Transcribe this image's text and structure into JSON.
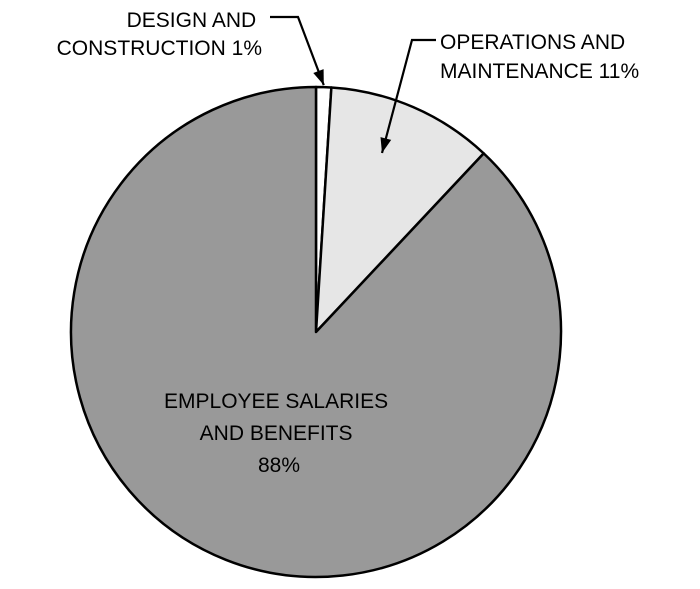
{
  "chart_data": {
    "type": "pie",
    "title": "",
    "slices": [
      {
        "label_lines": [
          "DESIGN AND",
          "CONSTRUCTION 1%"
        ],
        "value": 1,
        "color": "#ffffff"
      },
      {
        "label_lines": [
          "OPERATIONS AND",
          "MAINTENANCE 11%"
        ],
        "value": 11,
        "color": "#e6e6e6"
      },
      {
        "label_lines": [
          "EMPLOYEE SALARIES",
          "AND BENEFITS",
          "88%"
        ],
        "value": 88,
        "color": "#999999"
      }
    ],
    "legend": "none",
    "label_style": "callouts and inside label"
  }
}
